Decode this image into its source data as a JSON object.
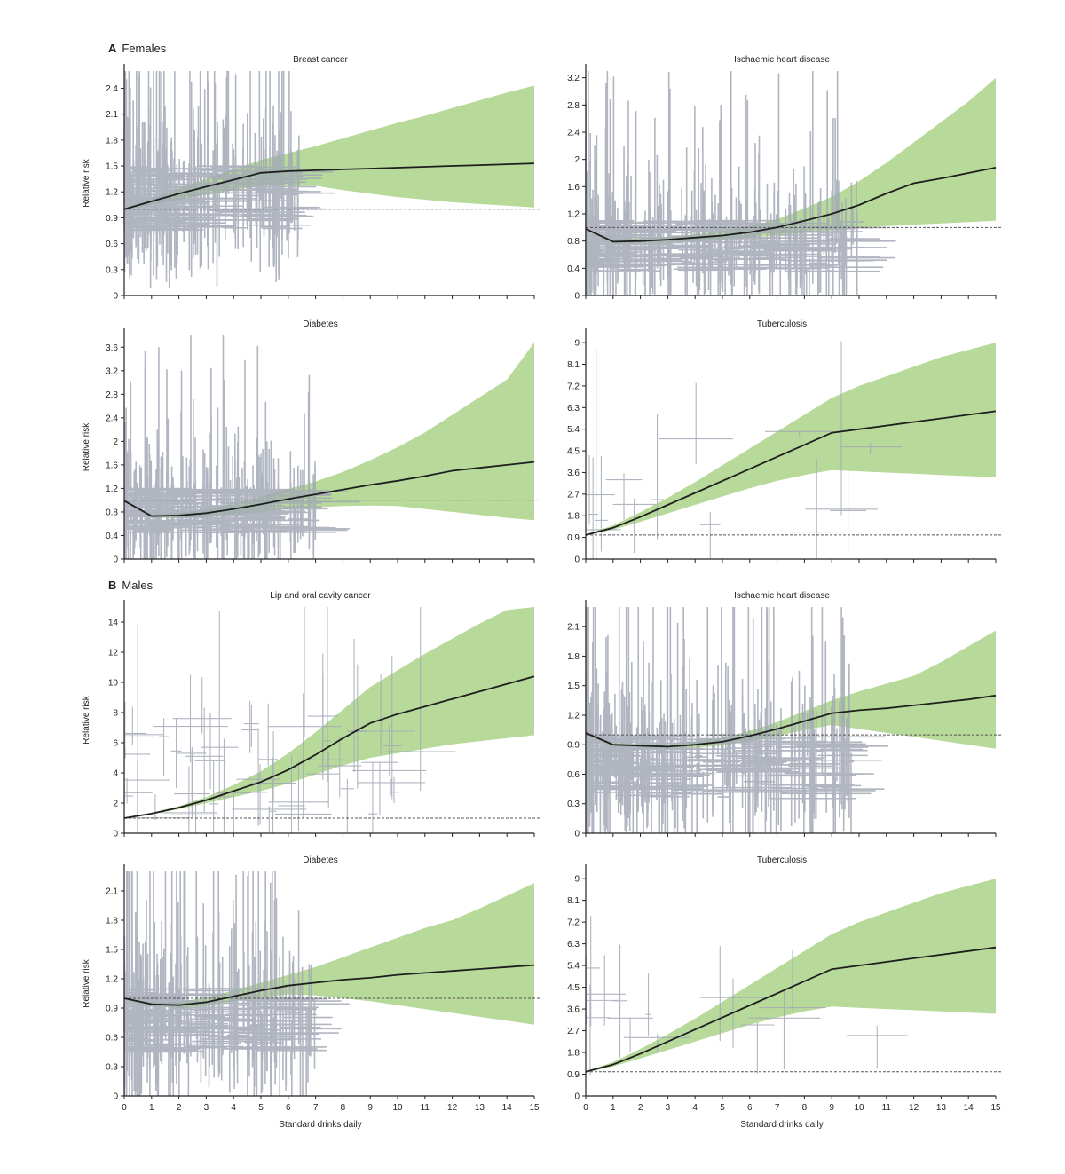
{
  "sections": {
    "a_letter": "A",
    "a_label": "Females",
    "b_letter": "B",
    "b_label": "Males"
  },
  "colors": {
    "line": "#1e1e1e",
    "band": "#b7d99a",
    "studies": "#a3a9b6",
    "reference": "#555555"
  },
  "x_axis": {
    "label": "Standard drinks daily",
    "ticks": [
      0,
      1,
      2,
      3,
      4,
      5,
      6,
      7,
      8,
      9,
      10,
      11,
      12,
      13,
      14,
      15
    ],
    "range": [
      0,
      15
    ]
  },
  "chart_data": [
    {
      "type": "line",
      "panel": "A-left-top",
      "title": "Breast cancer",
      "ylabel": "Relative risk",
      "xlabel": "",
      "ylim": [
        0,
        2.6
      ],
      "yticks": [
        0,
        0.3,
        0.6,
        0.9,
        1.2,
        1.5,
        1.8,
        2.1,
        2.4
      ],
      "reference": 1.0,
      "series": [
        {
          "x": [
            0,
            1,
            2,
            3,
            4,
            5,
            6,
            7,
            8,
            9,
            10,
            11,
            12,
            13,
            14,
            15
          ],
          "y": [
            1.0,
            1.09,
            1.18,
            1.26,
            1.34,
            1.42,
            1.44,
            1.45,
            1.46,
            1.47,
            1.48,
            1.49,
            1.5,
            1.51,
            1.52,
            1.53
          ],
          "lower": [
            0.99,
            1.05,
            1.11,
            1.17,
            1.22,
            1.27,
            1.27,
            1.27,
            1.22,
            1.18,
            1.14,
            1.11,
            1.08,
            1.06,
            1.04,
            1.02
          ],
          "upper": [
            1.01,
            1.12,
            1.24,
            1.35,
            1.46,
            1.57,
            1.65,
            1.73,
            1.82,
            1.91,
            2.0,
            2.08,
            2.17,
            2.26,
            2.35,
            2.43
          ]
        }
      ],
      "studies": {
        "n": 220,
        "xmax": 6.5,
        "center_lo": 0.75,
        "center_hi": 1.5,
        "width": 0.8
      }
    },
    {
      "type": "line",
      "panel": "A-right-top",
      "title": "Ischaemic heart disease",
      "ylabel": "",
      "xlabel": "",
      "ylim": [
        0,
        3.3
      ],
      "yticks": [
        0,
        0.4,
        0.8,
        1.2,
        1.6,
        2.0,
        2.4,
        2.8,
        3.2
      ],
      "reference": 1.0,
      "series": [
        {
          "x": [
            0,
            1,
            2,
            3,
            4,
            5,
            6,
            7,
            8,
            9,
            10,
            11,
            12,
            13,
            14,
            15
          ],
          "y": [
            0.98,
            0.79,
            0.8,
            0.82,
            0.85,
            0.88,
            0.93,
            1.0,
            1.1,
            1.2,
            1.33,
            1.5,
            1.65,
            1.72,
            1.8,
            1.88
          ],
          "lower": [
            0.97,
            0.76,
            0.77,
            0.78,
            0.8,
            0.82,
            0.85,
            0.88,
            0.92,
            0.96,
            1.0,
            1.02,
            1.04,
            1.06,
            1.08,
            1.1
          ],
          "upper": [
            0.99,
            0.82,
            0.84,
            0.86,
            0.9,
            0.95,
            1.02,
            1.12,
            1.28,
            1.45,
            1.68,
            1.95,
            2.25,
            2.55,
            2.85,
            3.2
          ]
        }
      ],
      "studies": {
        "n": 260,
        "xmax": 10,
        "center_lo": 0.35,
        "center_hi": 1.1,
        "width": 0.9
      }
    },
    {
      "type": "line",
      "panel": "A-left-bottom",
      "title": "Diabetes",
      "ylabel": "Relative risk",
      "xlabel": "",
      "ylim": [
        0,
        3.8
      ],
      "yticks": [
        0,
        0.4,
        0.8,
        1.2,
        1.6,
        2.0,
        2.4,
        2.8,
        3.2,
        3.6
      ],
      "reference": 1.0,
      "series": [
        {
          "x": [
            0,
            1,
            2,
            3,
            4,
            5,
            6,
            7,
            8,
            9,
            10,
            11,
            12,
            13,
            14,
            15
          ],
          "y": [
            0.99,
            0.73,
            0.74,
            0.78,
            0.85,
            0.93,
            1.02,
            1.1,
            1.18,
            1.26,
            1.33,
            1.41,
            1.5,
            1.55,
            1.6,
            1.65
          ],
          "lower": [
            0.98,
            0.7,
            0.7,
            0.72,
            0.76,
            0.8,
            0.85,
            0.88,
            0.9,
            0.91,
            0.9,
            0.85,
            0.8,
            0.75,
            0.7,
            0.66
          ],
          "upper": [
            1.0,
            0.76,
            0.78,
            0.84,
            0.95,
            1.06,
            1.19,
            1.32,
            1.48,
            1.68,
            1.9,
            2.15,
            2.45,
            2.75,
            3.05,
            3.68
          ]
        }
      ],
      "studies": {
        "n": 200,
        "xmax": 7,
        "center_lo": 0.45,
        "center_hi": 1.2,
        "width": 1.0
      }
    },
    {
      "type": "line",
      "panel": "A-right-bottom",
      "title": "Tuberculosis",
      "ylabel": "",
      "xlabel": "",
      "ylim": [
        0,
        9.3
      ],
      "yticks": [
        0,
        0.9,
        1.8,
        2.7,
        3.6,
        4.5,
        5.4,
        6.3,
        7.2,
        8.1,
        9.0
      ],
      "reference": 1.0,
      "series": [
        {
          "x": [
            0,
            1,
            2,
            3,
            4,
            5,
            6,
            7,
            8,
            9,
            10,
            11,
            12,
            13,
            14,
            15
          ],
          "y": [
            1.0,
            1.3,
            1.75,
            2.25,
            2.75,
            3.25,
            3.75,
            4.25,
            4.75,
            5.25,
            5.4,
            5.55,
            5.7,
            5.85,
            6.0,
            6.15
          ],
          "lower": [
            0.98,
            1.22,
            1.55,
            1.9,
            2.25,
            2.6,
            2.95,
            3.25,
            3.5,
            3.7,
            3.65,
            3.6,
            3.55,
            3.5,
            3.45,
            3.4
          ],
          "upper": [
            1.02,
            1.4,
            1.95,
            2.55,
            3.2,
            3.9,
            4.6,
            5.3,
            6.0,
            6.7,
            7.2,
            7.6,
            8.0,
            8.4,
            8.7,
            9.0
          ]
        }
      ],
      "studies": {
        "n": 14,
        "xmax": 11,
        "center_lo": 1.0,
        "center_hi": 5.5,
        "width": 2.5
      }
    },
    {
      "type": "line",
      "panel": "B-left-top",
      "title": "Lip and oral cavity cancer",
      "ylabel": "Relative risk",
      "xlabel": "",
      "ylim": [
        0,
        15
      ],
      "yticks": [
        0,
        2,
        4,
        6,
        8,
        10,
        12,
        14
      ],
      "reference": 1.0,
      "series": [
        {
          "x": [
            0,
            1,
            2,
            3,
            4,
            5,
            6,
            7,
            8,
            9,
            10,
            11,
            12,
            13,
            14,
            15
          ],
          "y": [
            1.0,
            1.3,
            1.7,
            2.2,
            2.8,
            3.4,
            4.2,
            5.2,
            6.3,
            7.3,
            7.9,
            8.4,
            8.9,
            9.4,
            9.9,
            10.4
          ],
          "lower": [
            0.98,
            1.25,
            1.6,
            2.0,
            2.4,
            2.8,
            3.3,
            3.9,
            4.5,
            5.0,
            5.3,
            5.6,
            5.9,
            6.1,
            6.3,
            6.5
          ],
          "upper": [
            1.02,
            1.35,
            1.8,
            2.4,
            3.2,
            4.1,
            5.3,
            6.7,
            8.2,
            9.7,
            10.8,
            11.9,
            12.9,
            13.9,
            14.8,
            15.0
          ]
        }
      ],
      "studies": {
        "n": 50,
        "xmax": 11,
        "center_lo": 1.0,
        "center_hi": 8.0,
        "width": 4.0
      }
    },
    {
      "type": "line",
      "panel": "B-right-top",
      "title": "Ischaemic heart disease",
      "ylabel": "",
      "xlabel": "",
      "ylim": [
        0,
        2.3
      ],
      "yticks": [
        0,
        0.3,
        0.6,
        0.9,
        1.2,
        1.5,
        1.8,
        2.1
      ],
      "reference": 1.0,
      "series": [
        {
          "x": [
            0,
            1,
            2,
            3,
            4,
            5,
            6,
            7,
            8,
            9,
            10,
            11,
            12,
            13,
            14,
            15
          ],
          "y": [
            1.02,
            0.9,
            0.89,
            0.88,
            0.9,
            0.93,
            0.99,
            1.06,
            1.14,
            1.22,
            1.25,
            1.27,
            1.3,
            1.33,
            1.36,
            1.4
          ],
          "lower": [
            1.01,
            0.88,
            0.87,
            0.86,
            0.87,
            0.89,
            0.94,
            0.99,
            1.05,
            1.1,
            1.06,
            1.02,
            0.98,
            0.94,
            0.9,
            0.86
          ],
          "upper": [
            1.03,
            0.92,
            0.91,
            0.9,
            0.93,
            0.97,
            1.04,
            1.13,
            1.24,
            1.35,
            1.44,
            1.52,
            1.6,
            1.74,
            1.9,
            2.06
          ]
        }
      ],
      "studies": {
        "n": 240,
        "xmax": 10,
        "center_lo": 0.35,
        "center_hi": 1.0,
        "width": 0.8
      }
    },
    {
      "type": "line",
      "panel": "B-left-bottom",
      "title": "Diabetes",
      "ylabel": "Relative risk",
      "xlabel": "Standard drinks daily",
      "ylim": [
        0,
        2.3
      ],
      "yticks": [
        0,
        0.3,
        0.6,
        0.9,
        1.2,
        1.5,
        1.8,
        2.1
      ],
      "reference": 1.0,
      "series": [
        {
          "x": [
            0,
            1,
            2,
            3,
            4,
            5,
            6,
            7,
            8,
            9,
            10,
            11,
            12,
            13,
            14,
            15
          ],
          "y": [
            1.0,
            0.94,
            0.93,
            0.96,
            1.02,
            1.08,
            1.13,
            1.16,
            1.19,
            1.21,
            1.24,
            1.26,
            1.28,
            1.3,
            1.32,
            1.34
          ],
          "lower": [
            0.99,
            0.92,
            0.9,
            0.92,
            0.97,
            1.01,
            1.04,
            1.03,
            1.0,
            0.97,
            0.93,
            0.89,
            0.85,
            0.81,
            0.77,
            0.73
          ],
          "upper": [
            1.01,
            0.96,
            0.96,
            1.01,
            1.08,
            1.16,
            1.24,
            1.32,
            1.42,
            1.52,
            1.62,
            1.72,
            1.8,
            1.92,
            2.05,
            2.18
          ]
        }
      ],
      "studies": {
        "n": 200,
        "xmax": 7,
        "center_lo": 0.45,
        "center_hi": 1.1,
        "width": 0.8
      }
    },
    {
      "type": "line",
      "panel": "B-right-bottom",
      "title": "Tuberculosis",
      "ylabel": "",
      "xlabel": "Standard drinks daily",
      "ylim": [
        0,
        9.3
      ],
      "yticks": [
        0,
        0.9,
        1.8,
        2.7,
        3.6,
        4.5,
        5.4,
        6.3,
        7.2,
        8.1,
        9.0
      ],
      "reference": 1.0,
      "series": [
        {
          "x": [
            0,
            1,
            2,
            3,
            4,
            5,
            6,
            7,
            8,
            9,
            10,
            11,
            12,
            13,
            14,
            15
          ],
          "y": [
            1.0,
            1.3,
            1.75,
            2.25,
            2.75,
            3.25,
            3.75,
            4.25,
            4.75,
            5.25,
            5.4,
            5.55,
            5.7,
            5.85,
            6.0,
            6.15
          ],
          "lower": [
            0.98,
            1.22,
            1.55,
            1.9,
            2.25,
            2.6,
            2.95,
            3.25,
            3.5,
            3.7,
            3.65,
            3.6,
            3.55,
            3.5,
            3.45,
            3.4
          ],
          "upper": [
            1.02,
            1.4,
            1.95,
            2.55,
            3.2,
            3.9,
            4.6,
            5.3,
            6.0,
            6.7,
            7.2,
            7.6,
            8.0,
            8.4,
            8.7,
            9.0
          ]
        }
      ],
      "studies": {
        "n": 14,
        "xmax": 11,
        "center_lo": 1.0,
        "center_hi": 5.5,
        "width": 2.5
      }
    }
  ]
}
